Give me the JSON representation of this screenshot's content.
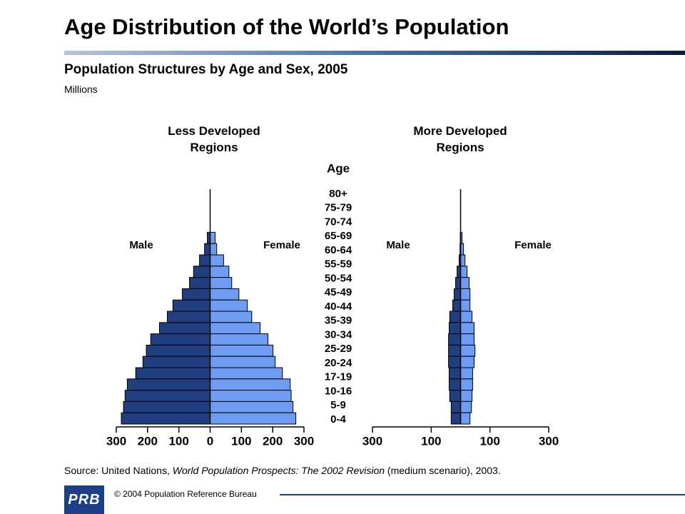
{
  "title": "Age Distribution of the World’s Population",
  "subtitle": "Population Structures by Age and Sex, 2005",
  "units": "Millions",
  "age_axis": {
    "label": "Age",
    "categories": [
      "80+",
      "75-79",
      "70-74",
      "65-69",
      "60-64",
      "55-59",
      "50-54",
      "45-49",
      "40-44",
      "35-39",
      "30-34",
      "25-29",
      "20-24",
      "17-19",
      "10-16",
      "5-9",
      "0-4"
    ]
  },
  "chart_data": [
    {
      "type": "pyramid",
      "title": "Less Developed Regions",
      "xlim": [
        -300,
        300
      ],
      "xticks": [
        {
          "value": -300,
          "label": "300"
        },
        {
          "value": -200,
          "label": "200"
        },
        {
          "value": -100,
          "label": "100"
        },
        0,
        100,
        200,
        300
      ],
      "series": [
        {
          "name": "Male",
          "color": "#1f3f7f",
          "values": [
            9,
            18,
            34,
            53,
            66,
            89,
            119,
            137,
            162,
            190,
            204,
            215,
            238,
            265,
            272,
            277,
            284
          ]
        },
        {
          "name": "Female",
          "color": "#6e9cf2",
          "values": [
            16,
            21,
            43,
            60,
            69,
            92,
            119,
            133,
            160,
            185,
            201,
            208,
            231,
            256,
            259,
            265,
            274
          ]
        }
      ]
    },
    {
      "type": "pyramid",
      "title": "More Developed Regions",
      "xlim": [
        -300,
        300
      ],
      "xticks": [
        {
          "value": -300,
          "label": "300"
        },
        {
          "value": -100,
          "label": "100"
        },
        100,
        300
      ],
      "series": [
        {
          "name": "Male",
          "color": "#1f3f7f",
          "values": [
            1,
            2,
            5,
            12,
            17,
            22,
            27,
            37,
            39,
            41,
            41,
            41,
            39,
            39,
            37,
            32,
            32
          ]
        },
        {
          "name": "Female",
          "color": "#6e9cf2",
          "values": [
            5,
            10,
            15,
            22,
            29,
            32,
            32,
            39,
            46,
            46,
            49,
            46,
            41,
            41,
            39,
            37,
            32
          ]
        }
      ]
    }
  ],
  "source": [
    "Source: United Nations, ",
    "World Population Prospects: The 2002 Revision",
    " (medium scenario), 2003."
  ],
  "footer": {
    "logo": "PRB",
    "copyright": "© 2004 Population Reference Bureau"
  }
}
